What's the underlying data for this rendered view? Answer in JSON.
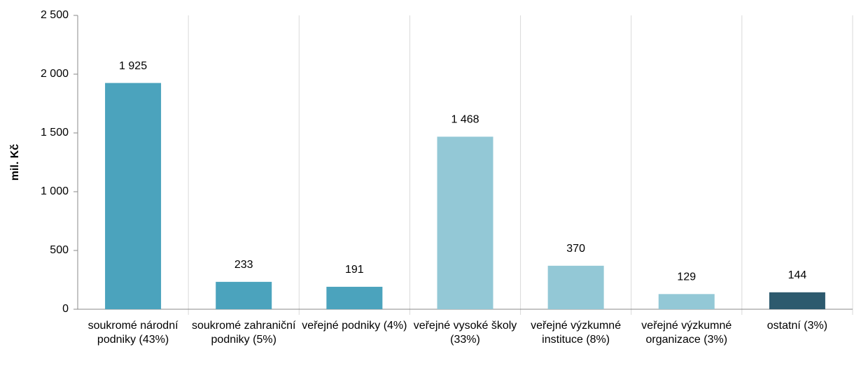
{
  "chart_data": {
    "type": "bar",
    "y_axis_label": "mil. Kč",
    "categories": [
      "soukromé národní podniky (43%)",
      "soukromé zahraniční podniky (5%)",
      "veřejné podniky (4%)",
      "veřejné vysoké školy (33%)",
      "veřejné výzkumné instituce (8%)",
      "veřejné výzkumné organizace (3%)",
      "ostatní (3%)"
    ],
    "values": [
      1925,
      233,
      191,
      1468,
      370,
      129,
      144
    ],
    "value_labels": [
      "1 925",
      "233",
      "191",
      "1 468",
      "370",
      "129",
      "144"
    ],
    "colors": [
      "#4ba3bd",
      "#4ba3bd",
      "#4ba3bd",
      "#93c8d6",
      "#93c8d6",
      "#93c8d6",
      "#2d5a6e"
    ],
    "ylim": [
      0,
      2500
    ],
    "yticks": [
      0,
      500,
      {
        "value": 1000,
        "label": "1 000"
      },
      {
        "value": 1500,
        "label": "1 500"
      },
      {
        "value": 2000,
        "label": "2 000"
      },
      {
        "value": 2500,
        "label": "2 500"
      }
    ],
    "grid": false
  }
}
